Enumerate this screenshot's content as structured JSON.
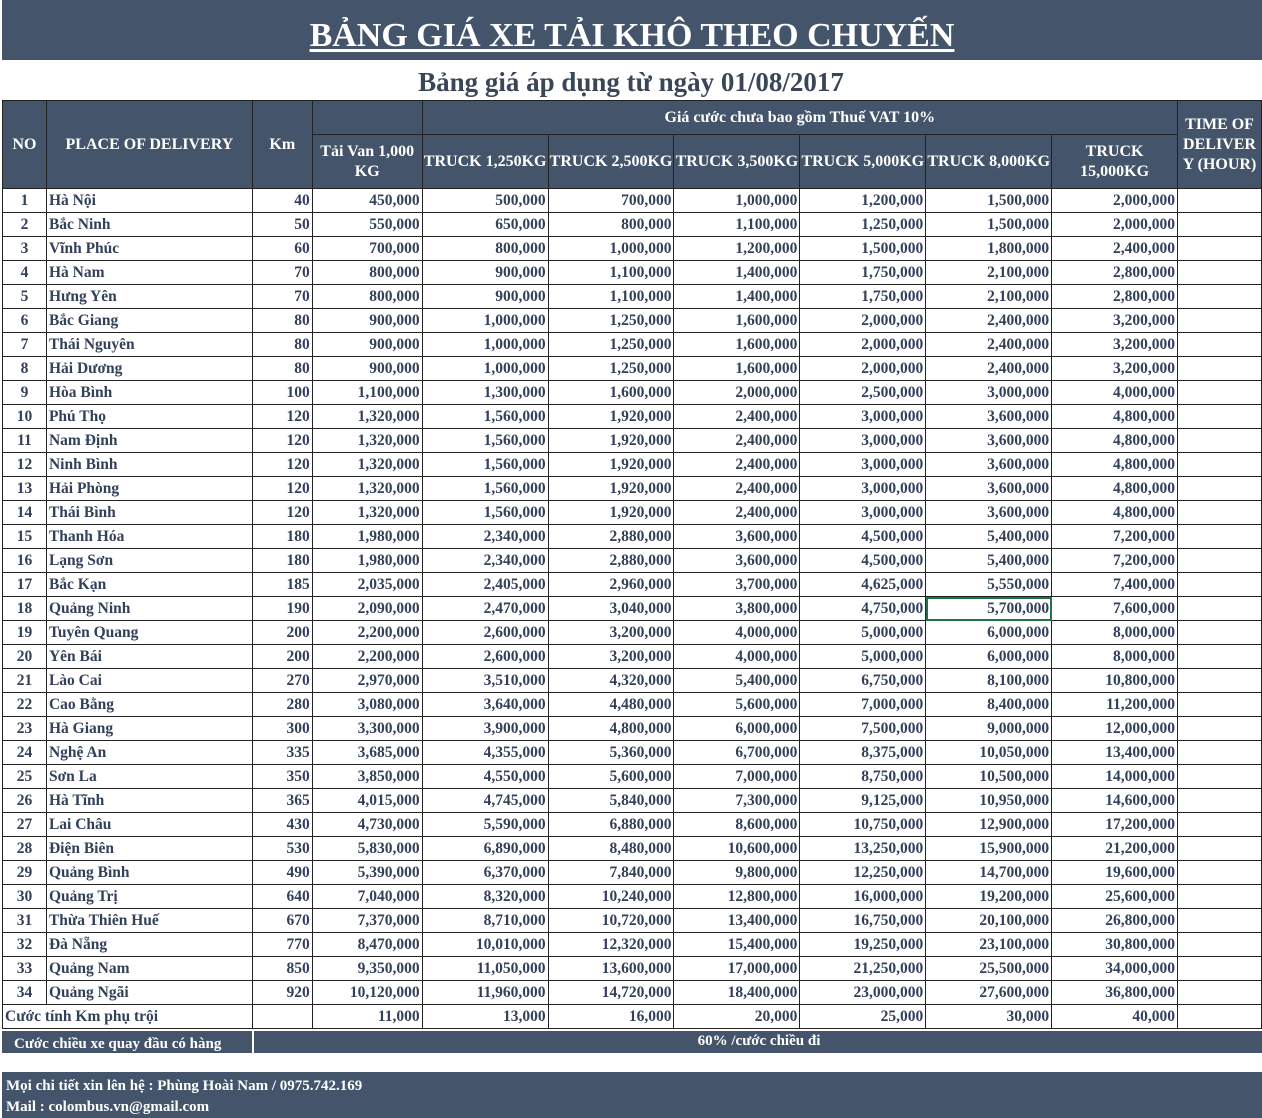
{
  "title": "BẢNG GIÁ XE TẢI KHÔ THEO CHUYẾN",
  "subtitle": "Bảng giá áp dụng từ ngày 01/08/2017",
  "headers": {
    "no": "NO",
    "place": "PLACE OF DELIVERY",
    "km": "Km",
    "price_group": "Giá cước chưa bao gồm Thuế VAT 10%",
    "time": "TIME OF DELIVERY (HOUR)",
    "vehicles": [
      "Tải Van 1,000 KG",
      "TRUCK 1,250KG",
      "TRUCK 2,500KG",
      "TRUCK 3,500KG",
      "TRUCK 5,000KG",
      "TRUCK 8,000KG",
      "TRUCK 15,000KG"
    ]
  },
  "rows": [
    {
      "no": "1",
      "place": "Hà Nội",
      "km": "40",
      "prices": [
        "450,000",
        "500,000",
        "700,000",
        "1,000,000",
        "1,200,000",
        "1,500,000",
        "2,000,000"
      ]
    },
    {
      "no": "2",
      "place": "Bắc Ninh",
      "km": "50",
      "prices": [
        "550,000",
        "650,000",
        "800,000",
        "1,100,000",
        "1,250,000",
        "1,500,000",
        "2,000,000"
      ]
    },
    {
      "no": "3",
      "place": "Vĩnh Phúc",
      "km": "60",
      "prices": [
        "700,000",
        "800,000",
        "1,000,000",
        "1,200,000",
        "1,500,000",
        "1,800,000",
        "2,400,000"
      ]
    },
    {
      "no": "4",
      "place": "Hà Nam",
      "km": "70",
      "prices": [
        "800,000",
        "900,000",
        "1,100,000",
        "1,400,000",
        "1,750,000",
        "2,100,000",
        "2,800,000"
      ]
    },
    {
      "no": "5",
      "place": "Hưng Yên",
      "km": "70",
      "prices": [
        "800,000",
        "900,000",
        "1,100,000",
        "1,400,000",
        "1,750,000",
        "2,100,000",
        "2,800,000"
      ]
    },
    {
      "no": "6",
      "place": "Bắc Giang",
      "km": "80",
      "prices": [
        "900,000",
        "1,000,000",
        "1,250,000",
        "1,600,000",
        "2,000,000",
        "2,400,000",
        "3,200,000"
      ]
    },
    {
      "no": "7",
      "place": "Thái Nguyên",
      "km": "80",
      "prices": [
        "900,000",
        "1,000,000",
        "1,250,000",
        "1,600,000",
        "2,000,000",
        "2,400,000",
        "3,200,000"
      ]
    },
    {
      "no": "8",
      "place": "Hải Dương",
      "km": "80",
      "prices": [
        "900,000",
        "1,000,000",
        "1,250,000",
        "1,600,000",
        "2,000,000",
        "2,400,000",
        "3,200,000"
      ]
    },
    {
      "no": "9",
      "place": "Hòa Bình",
      "km": "100",
      "prices": [
        "1,100,000",
        "1,300,000",
        "1,600,000",
        "2,000,000",
        "2,500,000",
        "3,000,000",
        "4,000,000"
      ]
    },
    {
      "no": "10",
      "place": "Phú Thọ",
      "km": "120",
      "prices": [
        "1,320,000",
        "1,560,000",
        "1,920,000",
        "2,400,000",
        "3,000,000",
        "3,600,000",
        "4,800,000"
      ]
    },
    {
      "no": "11",
      "place": "Nam Định",
      "km": "120",
      "prices": [
        "1,320,000",
        "1,560,000",
        "1,920,000",
        "2,400,000",
        "3,000,000",
        "3,600,000",
        "4,800,000"
      ]
    },
    {
      "no": "12",
      "place": "Ninh Bình",
      "km": "120",
      "prices": [
        "1,320,000",
        "1,560,000",
        "1,920,000",
        "2,400,000",
        "3,000,000",
        "3,600,000",
        "4,800,000"
      ]
    },
    {
      "no": "13",
      "place": "Hải Phòng",
      "km": "120",
      "prices": [
        "1,320,000",
        "1,560,000",
        "1,920,000",
        "2,400,000",
        "3,000,000",
        "3,600,000",
        "4,800,000"
      ]
    },
    {
      "no": "14",
      "place": "Thái Bình",
      "km": "120",
      "prices": [
        "1,320,000",
        "1,560,000",
        "1,920,000",
        "2,400,000",
        "3,000,000",
        "3,600,000",
        "4,800,000"
      ]
    },
    {
      "no": "15",
      "place": "Thanh Hóa",
      "km": "180",
      "prices": [
        "1,980,000",
        "2,340,000",
        "2,880,000",
        "3,600,000",
        "4,500,000",
        "5,400,000",
        "7,200,000"
      ]
    },
    {
      "no": "16",
      "place": "Lạng Sơn",
      "km": "180",
      "prices": [
        "1,980,000",
        "2,340,000",
        "2,880,000",
        "3,600,000",
        "4,500,000",
        "5,400,000",
        "7,200,000"
      ]
    },
    {
      "no": "17",
      "place": "Bắc Kạn",
      "km": "185",
      "prices": [
        "2,035,000",
        "2,405,000",
        "2,960,000",
        "3,700,000",
        "4,625,000",
        "5,550,000",
        "7,400,000"
      ]
    },
    {
      "no": "18",
      "place": "Quảng Ninh",
      "km": "190",
      "prices": [
        "2,090,000",
        "2,470,000",
        "3,040,000",
        "3,800,000",
        "4,750,000",
        "5,700,000",
        "7,600,000"
      ]
    },
    {
      "no": "19",
      "place": "Tuyên Quang",
      "km": "200",
      "prices": [
        "2,200,000",
        "2,600,000",
        "3,200,000",
        "4,000,000",
        "5,000,000",
        "6,000,000",
        "8,000,000"
      ]
    },
    {
      "no": "20",
      "place": "Yên Bái",
      "km": "200",
      "prices": [
        "2,200,000",
        "2,600,000",
        "3,200,000",
        "4,000,000",
        "5,000,000",
        "6,000,000",
        "8,000,000"
      ]
    },
    {
      "no": "21",
      "place": "Lào Cai",
      "km": "270",
      "prices": [
        "2,970,000",
        "3,510,000",
        "4,320,000",
        "5,400,000",
        "6,750,000",
        "8,100,000",
        "10,800,000"
      ]
    },
    {
      "no": "22",
      "place": "Cao Bằng",
      "km": "280",
      "prices": [
        "3,080,000",
        "3,640,000",
        "4,480,000",
        "5,600,000",
        "7,000,000",
        "8,400,000",
        "11,200,000"
      ]
    },
    {
      "no": "23",
      "place": "Hà Giang",
      "km": "300",
      "prices": [
        "3,300,000",
        "3,900,000",
        "4,800,000",
        "6,000,000",
        "7,500,000",
        "9,000,000",
        "12,000,000"
      ]
    },
    {
      "no": "24",
      "place": "Nghệ An",
      "km": "335",
      "prices": [
        "3,685,000",
        "4,355,000",
        "5,360,000",
        "6,700,000",
        "8,375,000",
        "10,050,000",
        "13,400,000"
      ]
    },
    {
      "no": "25",
      "place": "Sơn La",
      "km": "350",
      "prices": [
        "3,850,000",
        "4,550,000",
        "5,600,000",
        "7,000,000",
        "8,750,000",
        "10,500,000",
        "14,000,000"
      ]
    },
    {
      "no": "26",
      "place": "Hà Tĩnh",
      "km": "365",
      "prices": [
        "4,015,000",
        "4,745,000",
        "5,840,000",
        "7,300,000",
        "9,125,000",
        "10,950,000",
        "14,600,000"
      ]
    },
    {
      "no": "27",
      "place": "Lai Châu",
      "km": "430",
      "prices": [
        "4,730,000",
        "5,590,000",
        "6,880,000",
        "8,600,000",
        "10,750,000",
        "12,900,000",
        "17,200,000"
      ]
    },
    {
      "no": "28",
      "place": "Điện Biên",
      "km": "530",
      "prices": [
        "5,830,000",
        "6,890,000",
        "8,480,000",
        "10,600,000",
        "13,250,000",
        "15,900,000",
        "21,200,000"
      ]
    },
    {
      "no": "29",
      "place": "Quảng Bình",
      "km": "490",
      "prices": [
        "5,390,000",
        "6,370,000",
        "7,840,000",
        "9,800,000",
        "12,250,000",
        "14,700,000",
        "19,600,000"
      ]
    },
    {
      "no": "30",
      "place": "Quảng Trị",
      "km": "640",
      "prices": [
        "7,040,000",
        "8,320,000",
        "10,240,000",
        "12,800,000",
        "16,000,000",
        "19,200,000",
        "25,600,000"
      ]
    },
    {
      "no": "31",
      "place": "Thừa Thiên Huế",
      "km": "670",
      "prices": [
        "7,370,000",
        "8,710,000",
        "10,720,000",
        "13,400,000",
        "16,750,000",
        "20,100,000",
        "26,800,000"
      ]
    },
    {
      "no": "32",
      "place": "Đà Nẵng",
      "km": "770",
      "prices": [
        "8,470,000",
        "10,010,000",
        "12,320,000",
        "15,400,000",
        "19,250,000",
        "23,100,000",
        "30,800,000"
      ]
    },
    {
      "no": "33",
      "place": "Quảng Nam",
      "km": "850",
      "prices": [
        "9,350,000",
        "11,050,000",
        "13,600,000",
        "17,000,000",
        "21,250,000",
        "25,500,000",
        "34,000,000"
      ]
    },
    {
      "no": "34",
      "place": "Quảng Ngãi",
      "km": "920",
      "prices": [
        "10,120,000",
        "11,960,000",
        "14,720,000",
        "18,400,000",
        "23,000,000",
        "27,600,000",
        "36,800,000"
      ]
    }
  ],
  "extra_km": {
    "label": "Cước tính Km phụ trội",
    "prices": [
      "11,000",
      "13,000",
      "16,000",
      "20,000",
      "25,000",
      "30,000",
      "40,000"
    ]
  },
  "return_trip": {
    "label": "Cước chiều xe quay đầu có hàng",
    "value": "60% /cước chiều đi"
  },
  "contact": {
    "line1": "Mọi chi tiết xin lên hệ : Phùng Hoài Nam / 0975.742.169",
    "line2": "Mail  : colombus.vn@gmail.com"
  },
  "selected_cell": {
    "row": "18",
    "column": "TRUCK 8,000KG"
  },
  "colors": {
    "header_bg": "#44546a",
    "text": "#33405a",
    "selection": "#217346"
  }
}
